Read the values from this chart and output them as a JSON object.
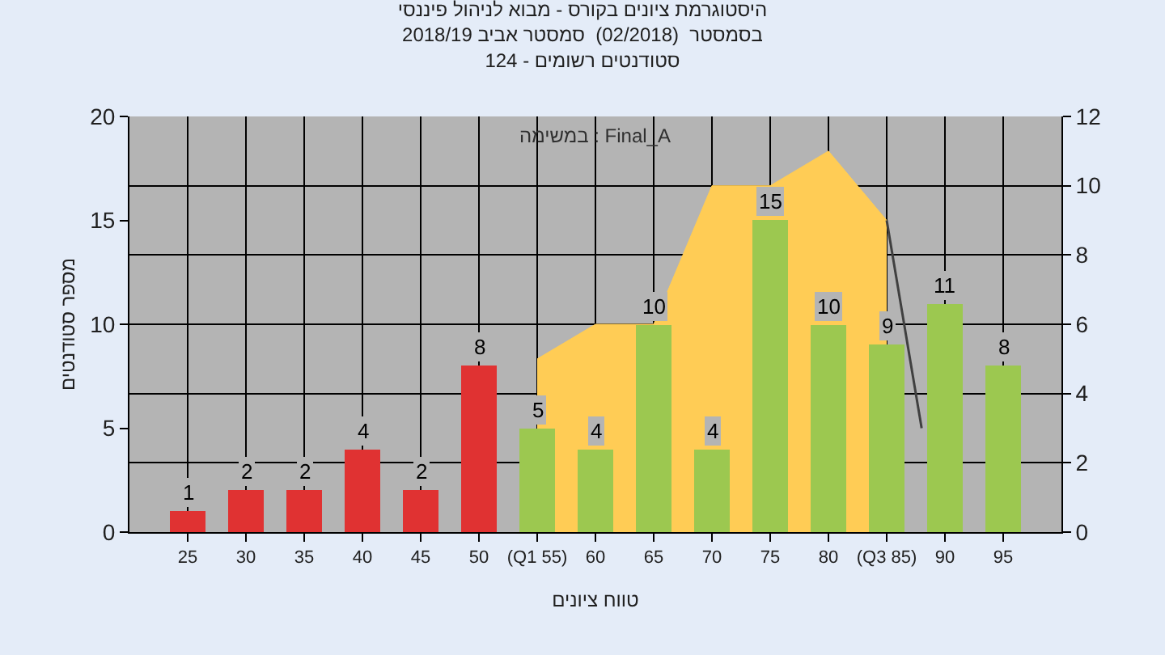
{
  "chart_data": {
    "type": "bar",
    "title": "היסטוגרמת ציונים בקורס - מבוא לניהול פיננסי\nבסמסטר  (02/2018)  סמסטר אביב 2018/19\nסטודנטים רשומים - 124",
    "xlabel": "טווח ציונים",
    "ylabel": "מספר סטודנטים",
    "annotations": [
      "במשימה : Final_A"
    ],
    "x": [
      25,
      30,
      35,
      40,
      45,
      50,
      55,
      60,
      65,
      70,
      75,
      80,
      85,
      90,
      95
    ],
    "series": [
      {
        "colors": [
          "#e03232",
          "#e03232",
          "#e03232",
          "#e03232",
          "#e03232",
          "#e03232",
          "#9cc850",
          "#9cc850",
          "#9cc850",
          "#9cc850",
          "#9cc850",
          "#9cc850",
          "#9cc850",
          "#9cc850",
          "#9cc850"
        ],
        "values": [
          1,
          2,
          2,
          4,
          2,
          8,
          5,
          4,
          10,
          4,
          15,
          10,
          9,
          11,
          8
        ],
        "value_labels": [
          "1",
          "2",
          "2",
          "4",
          "2",
          "8",
          "5",
          "4",
          "10",
          "4",
          "15",
          "10",
          "9",
          "11",
          "8"
        ]
      },
      {
        "type": "area",
        "axis": "y2",
        "color": "#ffcc55",
        "x": [
          55,
          60,
          65,
          70,
          75,
          80,
          85
        ],
        "values": [
          5,
          6,
          6,
          10,
          10,
          11,
          9
        ]
      },
      {
        "type": "line",
        "axis": "y2",
        "color": "#404040",
        "x": [
          85,
          88
        ],
        "values": [
          9,
          3
        ]
      }
    ],
    "xlim": [
      20,
      100
    ],
    "xticks": [
      25,
      30,
      35,
      40,
      45,
      50,
      {
        "value": 55,
        "label": "(Q1 55)"
      },
      60,
      65,
      70,
      75,
      80,
      {
        "value": 85,
        "label": "(Q3 85)"
      },
      90,
      95
    ],
    "ylim": [
      0,
      20
    ],
    "yticks": [
      0,
      5,
      10,
      15,
      20
    ],
    "y2lim": [
      0,
      12
    ],
    "y2ticks": [
      0,
      2,
      4,
      6,
      8,
      10,
      12
    ],
    "grid": true,
    "marker": "none"
  }
}
